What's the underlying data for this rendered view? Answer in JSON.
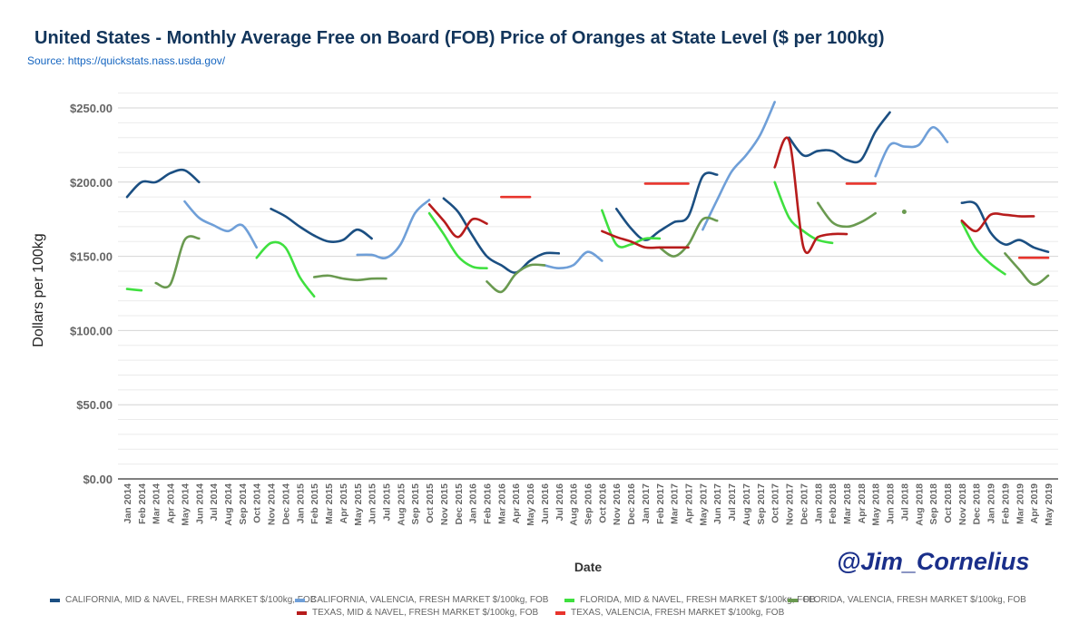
{
  "title": "United States - Monthly Average Free on Board (FOB) Price of Oranges at State Level ($ per 100kg)",
  "source": "Source: https://quickstats.nass.usda.gov/",
  "watermark": "@Jim_Cornelius",
  "chart_data": {
    "type": "line",
    "title": "United States - Monthly Average Free on Board (FOB) Price of Oranges at State Level ($ per 100kg)",
    "xlabel": "Date",
    "ylabel": "Dollars per 100kg",
    "ylim": [
      0,
      260
    ],
    "yticks": [
      0,
      50,
      100,
      150,
      200,
      250
    ],
    "ytick_labels": [
      "$0.00",
      "$50.00",
      "$100.00",
      "$150.00",
      "$200.00",
      "$250.00"
    ],
    "grid": true,
    "legend_position": "bottom",
    "x": [
      "Jan 2014",
      "Feb 2014",
      "Mar 2014",
      "Apr 2014",
      "May 2014",
      "Jun 2014",
      "Jul 2014",
      "Aug 2014",
      "Sep 2014",
      "Oct 2014",
      "Nov 2014",
      "Dec 2014",
      "Jan 2015",
      "Feb 2015",
      "Mar 2015",
      "Apr 2015",
      "May 2015",
      "Jun 2015",
      "Jul 2015",
      "Aug 2015",
      "Sep 2015",
      "Oct 2015",
      "Nov 2015",
      "Dec 2015",
      "Jan 2016",
      "Feb 2016",
      "Mar 2016",
      "Apr 2016",
      "May 2016",
      "Jun 2016",
      "Jul 2016",
      "Aug 2016",
      "Sep 2016",
      "Oct 2016",
      "Nov 2016",
      "Dec 2016",
      "Jan 2017",
      "Feb 2017",
      "Mar 2017",
      "Apr 2017",
      "May 2017",
      "Jun 2017",
      "Jul 2017",
      "Aug 2017",
      "Sep 2017",
      "Oct 2017",
      "Nov 2017",
      "Dec 2017",
      "Jan 2018",
      "Feb 2018",
      "Mar 2018",
      "Apr 2018",
      "May 2018",
      "Jun 2018",
      "Jul 2018",
      "Aug 2018",
      "Sep 2018",
      "Oct 2018",
      "Nov 2018",
      "Dec 2018",
      "Jan 2019",
      "Feb 2019",
      "Mar 2019",
      "Apr 2019",
      "May 2019"
    ],
    "series": [
      {
        "name": "CALIFORNIA, MID & NAVEL, FRESH MARKET $/100kg, FOB",
        "color": "#1b4f82",
        "values": [
          190,
          200,
          200,
          206,
          208,
          200,
          null,
          null,
          null,
          null,
          182,
          177,
          170,
          164,
          160,
          161,
          168,
          162,
          null,
          null,
          null,
          null,
          189,
          180,
          164,
          150,
          144,
          139,
          147,
          152,
          152,
          null,
          null,
          null,
          182,
          169,
          161,
          167,
          173,
          177,
          204,
          205,
          null,
          null,
          null,
          null,
          230,
          218,
          221,
          221,
          215,
          215,
          234,
          247,
          null,
          null,
          null,
          null,
          186,
          185,
          166,
          158,
          161,
          156,
          153
        ]
      },
      {
        "name": "CALIFORNIA, VALENCIA, FRESH MARKET $/100kg, FOB",
        "color": "#6f9fd8",
        "values": [
          null,
          null,
          null,
          null,
          187,
          176,
          171,
          167,
          171,
          156,
          null,
          null,
          null,
          null,
          null,
          null,
          151,
          151,
          149,
          158,
          179,
          188,
          null,
          null,
          null,
          null,
          null,
          null,
          null,
          144,
          142,
          144,
          153,
          147,
          null,
          null,
          null,
          null,
          null,
          null,
          168,
          188,
          207,
          218,
          232,
          254,
          null,
          null,
          null,
          null,
          null,
          null,
          204,
          225,
          224,
          225,
          237,
          227,
          null,
          null,
          null,
          null,
          null,
          null,
          null
        ]
      },
      {
        "name": "FLORIDA, MID & NAVEL, FRESH MARKET $/100kg, FOB",
        "color": "#3fe03f",
        "values": [
          128,
          127,
          null,
          null,
          null,
          null,
          null,
          null,
          null,
          149,
          159,
          156,
          136,
          123,
          null,
          null,
          null,
          null,
          null,
          null,
          null,
          179,
          165,
          150,
          143,
          142,
          null,
          null,
          null,
          null,
          null,
          null,
          null,
          181,
          158,
          158,
          162,
          162,
          null,
          null,
          null,
          null,
          null,
          null,
          null,
          200,
          176,
          167,
          161,
          159,
          null,
          null,
          null,
          null,
          null,
          null,
          null,
          null,
          173,
          155,
          145,
          138,
          null,
          null,
          null
        ]
      },
      {
        "name": "FLORIDA, VALENCIA, FRESH MARKET $/100kg, FOB",
        "color": "#6a9a50",
        "values": [
          null,
          null,
          132,
          131,
          161,
          162,
          null,
          null,
          null,
          null,
          null,
          null,
          null,
          136,
          137,
          135,
          134,
          135,
          135,
          null,
          null,
          null,
          null,
          null,
          null,
          133,
          126,
          138,
          144,
          144,
          null,
          null,
          null,
          null,
          null,
          null,
          null,
          156,
          150,
          158,
          175,
          174,
          null,
          null,
          null,
          null,
          null,
          null,
          186,
          173,
          170,
          173,
          179,
          null,
          180,
          null,
          null,
          null,
          null,
          null,
          null,
          152,
          141,
          131,
          137
        ]
      },
      {
        "name": "TEXAS, MID & NAVEL, FRESH MARKET $/100kg, FOB",
        "color": "#b71c1c",
        "values": [
          null,
          null,
          null,
          null,
          null,
          null,
          null,
          null,
          null,
          null,
          null,
          null,
          null,
          null,
          null,
          null,
          null,
          null,
          null,
          null,
          null,
          185,
          174,
          163,
          175,
          172,
          null,
          null,
          null,
          null,
          null,
          null,
          null,
          167,
          163,
          160,
          156,
          156,
          156,
          156,
          null,
          null,
          null,
          null,
          null,
          210,
          228,
          156,
          163,
          165,
          165,
          null,
          null,
          null,
          null,
          null,
          null,
          null,
          174,
          167,
          178,
          178,
          177,
          177,
          null
        ]
      },
      {
        "name": "TEXAS, VALENCIA, FRESH MARKET $/100kg, FOB",
        "color": "#e8342c",
        "values": [
          null,
          null,
          null,
          null,
          null,
          null,
          null,
          null,
          null,
          null,
          null,
          null,
          null,
          null,
          null,
          null,
          null,
          null,
          null,
          null,
          null,
          null,
          null,
          null,
          null,
          null,
          190,
          190,
          190,
          null,
          null,
          null,
          null,
          null,
          null,
          null,
          199,
          199,
          199,
          199,
          null,
          null,
          null,
          null,
          null,
          null,
          null,
          null,
          null,
          null,
          199,
          199,
          199,
          null,
          null,
          null,
          null,
          null,
          null,
          null,
          null,
          null,
          149,
          149,
          149
        ]
      }
    ]
  }
}
